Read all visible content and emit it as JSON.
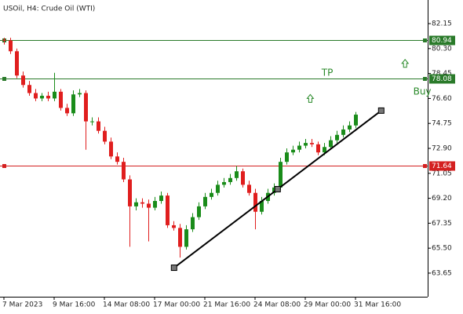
{
  "chart_data": {
    "type": "candlestick",
    "title": "USOil, H4:  Crude Oil (WTI)",
    "categories": [
      "7 Mar 2023",
      null,
      null,
      null,
      null,
      null,
      null,
      null,
      "9 Mar 16:00",
      null,
      null,
      null,
      null,
      null,
      null,
      null,
      "14 Mar 08:00",
      null,
      null,
      null,
      null,
      null,
      null,
      null,
      "17 Mar 00:00",
      null,
      null,
      null,
      null,
      null,
      null,
      null,
      "21 Mar 16:00",
      null,
      null,
      null,
      null,
      null,
      null,
      null,
      "24 Mar 08:00",
      null,
      null,
      null,
      null,
      null,
      null,
      null,
      "29 Mar 00:00",
      null,
      null,
      null,
      null,
      null,
      null,
      null,
      "31 Mar 16:00"
    ],
    "open": [
      80.95,
      80.9,
      80.1,
      78.3,
      77.6,
      77.0,
      76.6,
      76.8,
      76.6,
      77.1,
      75.9,
      75.5,
      76.9,
      77.0,
      74.9,
      74.9,
      74.2,
      73.4,
      72.3,
      71.9,
      70.6,
      68.6,
      68.9,
      68.8,
      68.5,
      69.0,
      69.4,
      67.2,
      67.0,
      65.6,
      66.9,
      67.8,
      68.6,
      69.3,
      69.6,
      70.2,
      70.4,
      70.7,
      71.2,
      70.2,
      69.6,
      68.2,
      69.0,
      69.6,
      70.0,
      71.9,
      72.6,
      72.8,
      73.1,
      73.3,
      73.2,
      72.6,
      73.0,
      73.5,
      73.9,
      74.3,
      74.6
    ],
    "high": [
      81.1,
      81.1,
      80.3,
      78.6,
      77.9,
      77.3,
      77.0,
      77.1,
      78.5,
      77.3,
      76.2,
      77.2,
      77.3,
      77.2,
      75.2,
      75.2,
      74.5,
      73.7,
      72.6,
      72.2,
      70.9,
      69.2,
      69.2,
      69.1,
      69.3,
      69.7,
      69.6,
      67.5,
      67.3,
      67.2,
      68.1,
      68.9,
      69.6,
      69.9,
      70.5,
      70.7,
      71.0,
      71.6,
      71.4,
      70.5,
      69.9,
      69.3,
      69.9,
      70.3,
      72.2,
      72.9,
      73.1,
      73.4,
      73.6,
      73.6,
      73.4,
      73.3,
      73.8,
      74.2,
      74.6,
      74.9,
      75.6
    ],
    "low": [
      80.6,
      79.9,
      78.1,
      77.4,
      76.8,
      76.4,
      76.4,
      76.4,
      76.4,
      75.7,
      75.3,
      75.3,
      76.7,
      72.8,
      74.6,
      74.0,
      73.2,
      72.1,
      71.7,
      70.4,
      65.6,
      68.3,
      68.5,
      66.0,
      68.3,
      68.8,
      67.0,
      66.8,
      64.8,
      65.4,
      66.7,
      67.6,
      68.4,
      69.1,
      69.4,
      70.0,
      70.2,
      70.5,
      70.0,
      69.4,
      66.9,
      68.0,
      68.8,
      69.4,
      69.8,
      71.7,
      72.4,
      72.6,
      72.9,
      73.0,
      72.4,
      72.4,
      72.8,
      73.3,
      73.7,
      74.1,
      74.4
    ],
    "close": [
      80.9,
      80.1,
      78.3,
      77.6,
      77.0,
      76.6,
      76.8,
      76.6,
      77.1,
      75.9,
      75.5,
      76.9,
      77.0,
      74.9,
      74.9,
      74.2,
      73.4,
      72.3,
      71.9,
      70.6,
      68.6,
      68.9,
      68.8,
      68.5,
      69.0,
      69.4,
      67.2,
      67.0,
      65.6,
      66.9,
      67.8,
      68.6,
      69.3,
      69.6,
      70.2,
      70.4,
      70.7,
      71.2,
      70.2,
      69.6,
      68.2,
      69.0,
      69.6,
      70.0,
      71.9,
      72.6,
      72.8,
      73.1,
      73.3,
      73.2,
      72.6,
      73.0,
      73.5,
      73.9,
      74.3,
      74.6,
      75.4
    ],
    "up_color": "#1a8c1a",
    "down_color": "#e01e1e",
    "ylim": [
      61.9,
      83.9
    ],
    "yticks": [
      {
        "value": 63.65,
        "label": "63.65"
      },
      {
        "value": 65.5,
        "label": "65.50"
      },
      {
        "value": 67.35,
        "label": "67.35"
      },
      {
        "value": 69.2,
        "label": "69.20"
      },
      {
        "value": 71.05,
        "label": "71.05"
      },
      {
        "value": 72.9,
        "label": "72.90"
      },
      {
        "value": 74.75,
        "label": "74.75"
      },
      {
        "value": 76.6,
        "label": "76.60"
      },
      {
        "value": 78.45,
        "label": "78.45"
      },
      {
        "value": 80.3,
        "label": "80.30"
      },
      {
        "value": 82.15,
        "label": "82.15"
      }
    ],
    "levels": [
      {
        "value": 80.94,
        "color": "#2a7a2a"
      },
      {
        "value": 78.08,
        "color": "#2a7a2a"
      },
      {
        "value": 71.64,
        "color": "#d42020"
      }
    ],
    "trendline": {
      "x": [
        27.1,
        60.1
      ],
      "y": [
        64.05,
        75.7
      ]
    },
    "annotations": [
      {
        "text": "TP",
        "x": 50.6,
        "y": 78.5
      },
      {
        "text": "Buy",
        "x": 65.2,
        "y": 77.1
      }
    ],
    "arrows": [
      {
        "x": 48.8,
        "y": 76.6
      },
      {
        "x": 63.9,
        "y": 79.2
      }
    ],
    "annotation_color": "#2a8a2a"
  }
}
